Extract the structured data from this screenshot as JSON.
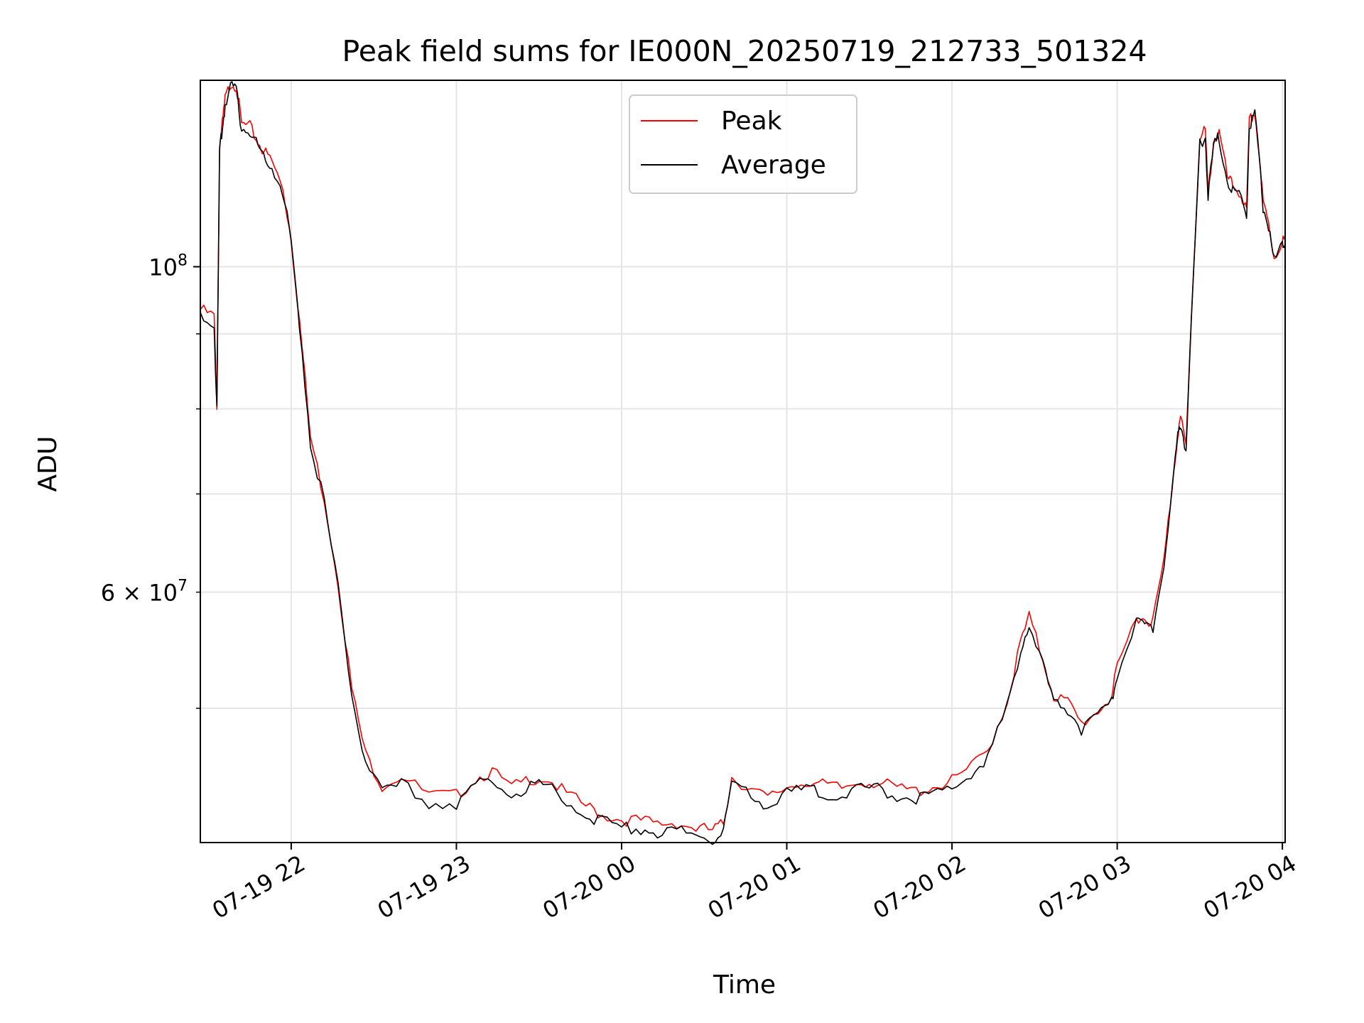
{
  "chart_data": {
    "type": "line",
    "title": "Peak field sums for IE000N_20250719_212733_501324",
    "xlabel": "Time",
    "ylabel": "ADU",
    "yscale": "log",
    "xlim": [
      "2025-07-19 21:27",
      "2025-07-20 04:01"
    ],
    "ylim": [
      40500000,
      134000000
    ],
    "grid": true,
    "legend_position": "top-center",
    "x_ticks": [
      {
        "x": "2025-07-19 22:00",
        "label": "07-19 22"
      },
      {
        "x": "2025-07-19 23:00",
        "label": "07-19 23"
      },
      {
        "x": "2025-07-20 00:00",
        "label": "07-20 00"
      },
      {
        "x": "2025-07-20 01:00",
        "label": "07-20 01"
      },
      {
        "x": "2025-07-20 02:00",
        "label": "07-20 02"
      },
      {
        "x": "2025-07-20 03:00",
        "label": "07-20 03"
      },
      {
        "x": "2025-07-20 04:00",
        "label": "07-20 04"
      }
    ],
    "y_major_ticks": [
      {
        "y": 100000000,
        "base": "10",
        "exp": "8"
      }
    ],
    "y_minor_ticks": [
      {
        "y": 60000000,
        "label_prefix": "6 × 10",
        "exp": "7"
      }
    ],
    "y_minor_grid": [
      50000000,
      60000000,
      70000000,
      80000000,
      90000000,
      100000000
    ],
    "x": [
      "2025-07-19 21:27",
      "2025-07-19 21:32",
      "2025-07-19 21:33",
      "2025-07-19 21:34",
      "2025-07-19 21:35",
      "2025-07-19 21:36",
      "2025-07-19 21:38",
      "2025-07-19 21:40",
      "2025-07-19 21:42",
      "2025-07-19 21:45",
      "2025-07-19 21:48",
      "2025-07-19 21:50",
      "2025-07-19 21:53",
      "2025-07-19 21:57",
      "2025-07-19 22:00",
      "2025-07-19 22:03",
      "2025-07-19 22:07",
      "2025-07-19 22:12",
      "2025-07-19 22:17",
      "2025-07-19 22:22",
      "2025-07-19 22:27",
      "2025-07-19 22:33",
      "2025-07-19 22:40",
      "2025-07-19 22:50",
      "2025-07-19 23:00",
      "2025-07-19 23:07",
      "2025-07-19 23:13",
      "2025-07-19 23:20",
      "2025-07-19 23:27",
      "2025-07-19 23:33",
      "2025-07-19 23:40",
      "2025-07-19 23:47",
      "2025-07-19 23:53",
      "2025-07-20 00:00",
      "2025-07-20 00:07",
      "2025-07-20 00:13",
      "2025-07-20 00:20",
      "2025-07-20 00:27",
      "2025-07-20 00:33",
      "2025-07-20 00:37",
      "2025-07-20 00:40",
      "2025-07-20 00:47",
      "2025-07-20 00:53",
      "2025-07-20 01:00",
      "2025-07-20 01:07",
      "2025-07-20 01:13",
      "2025-07-20 01:20",
      "2025-07-20 01:27",
      "2025-07-20 01:33",
      "2025-07-20 01:40",
      "2025-07-20 01:47",
      "2025-07-20 01:53",
      "2025-07-20 02:00",
      "2025-07-20 02:07",
      "2025-07-20 02:13",
      "2025-07-20 02:20",
      "2025-07-20 02:25",
      "2025-07-20 02:28",
      "2025-07-20 02:33",
      "2025-07-20 02:37",
      "2025-07-20 02:42",
      "2025-07-20 02:47",
      "2025-07-20 02:53",
      "2025-07-20 02:58",
      "2025-07-20 03:00",
      "2025-07-20 03:07",
      "2025-07-20 03:10",
      "2025-07-20 03:13",
      "2025-07-20 03:17",
      "2025-07-20 03:20",
      "2025-07-20 03:22",
      "2025-07-20 03:23",
      "2025-07-20 03:25",
      "2025-07-20 03:27",
      "2025-07-20 03:30",
      "2025-07-20 03:32",
      "2025-07-20 03:33",
      "2025-07-20 03:35",
      "2025-07-20 03:37",
      "2025-07-20 03:40",
      "2025-07-20 03:42",
      "2025-07-20 03:45",
      "2025-07-20 03:47",
      "2025-07-20 03:48",
      "2025-07-20 03:50",
      "2025-07-20 03:52",
      "2025-07-20 03:53",
      "2025-07-20 03:55",
      "2025-07-20 03:57",
      "2025-07-20 04:00",
      "2025-07-20 04:01"
    ],
    "series": [
      {
        "name": "Peak",
        "color": "#ff0000",
        "values": [
          93500000,
          92500000,
          80500000,
          121000000,
          125000000,
          130000000,
          133500000,
          133000000,
          125000000,
          124500000,
          121500000,
          120000000,
          118000000,
          113000000,
          104500000,
          92000000,
          76500000,
          69500000,
          61000000,
          51500000,
          46500000,
          44300000,
          45000000,
          43600000,
          43600000,
          44800000,
          45300000,
          44100000,
          44800000,
          44800000,
          43700000,
          42900000,
          42300000,
          42000000,
          41900000,
          41700000,
          41800000,
          41400000,
          41300000,
          41700000,
          44900000,
          44000000,
          43400000,
          44200000,
          44600000,
          44300000,
          44100000,
          44600000,
          44500000,
          44100000,
          43900000,
          44200000,
          44600000,
          45600000,
          46800000,
          50500000,
          55500000,
          57700000,
          54000000,
          51000000,
          50500000,
          48800000,
          49800000,
          51000000,
          53200000,
          57800000,
          57500000,
          57400000,
          63000000,
          71000000,
          77000000,
          78800000,
          75500000,
          93000000,
          122000000,
          124000000,
          112500000,
          121500000,
          123500000,
          115000000,
          113500000,
          112000000,
          109000000,
          125500000,
          127500000,
          117000000,
          110500000,
          107000000,
          101500000,
          104000000,
          104500000
        ]
      },
      {
        "name": "Average",
        "color": "#000000",
        "values": [
          92600000,
          91700000,
          79800000,
          120000000,
          124000000,
          129000000,
          132500000,
          132000000,
          124200000,
          123700000,
          120700000,
          119200000,
          117300000,
          112300000,
          104000000,
          91500000,
          76000000,
          69000000,
          60500000,
          51000000,
          46000000,
          43700000,
          44400000,
          43100000,
          43100000,
          44300000,
          44800000,
          43600000,
          44300000,
          44300000,
          43200000,
          42400000,
          41800000,
          41500000,
          41400000,
          41200000,
          41300000,
          40900000,
          40800000,
          41200000,
          44400000,
          43500000,
          42900000,
          43700000,
          44100000,
          43800000,
          43600000,
          44100000,
          44000000,
          43600000,
          43400000,
          43700000,
          44100000,
          45100000,
          46300000,
          50000000,
          55000000,
          57200000,
          53400000,
          50500000,
          50000000,
          48300000,
          49300000,
          50500000,
          52700000,
          57300000,
          57000000,
          56900000,
          62500000,
          70500000,
          76500000,
          78300000,
          75000000,
          92500000,
          121000000,
          123000000,
          111800000,
          120800000,
          122800000,
          114300000,
          112800000,
          111300000,
          108300000,
          124800000,
          126800000,
          116300000,
          109800000,
          106300000,
          100800000,
          103300000,
          103800000
        ]
      }
    ]
  }
}
